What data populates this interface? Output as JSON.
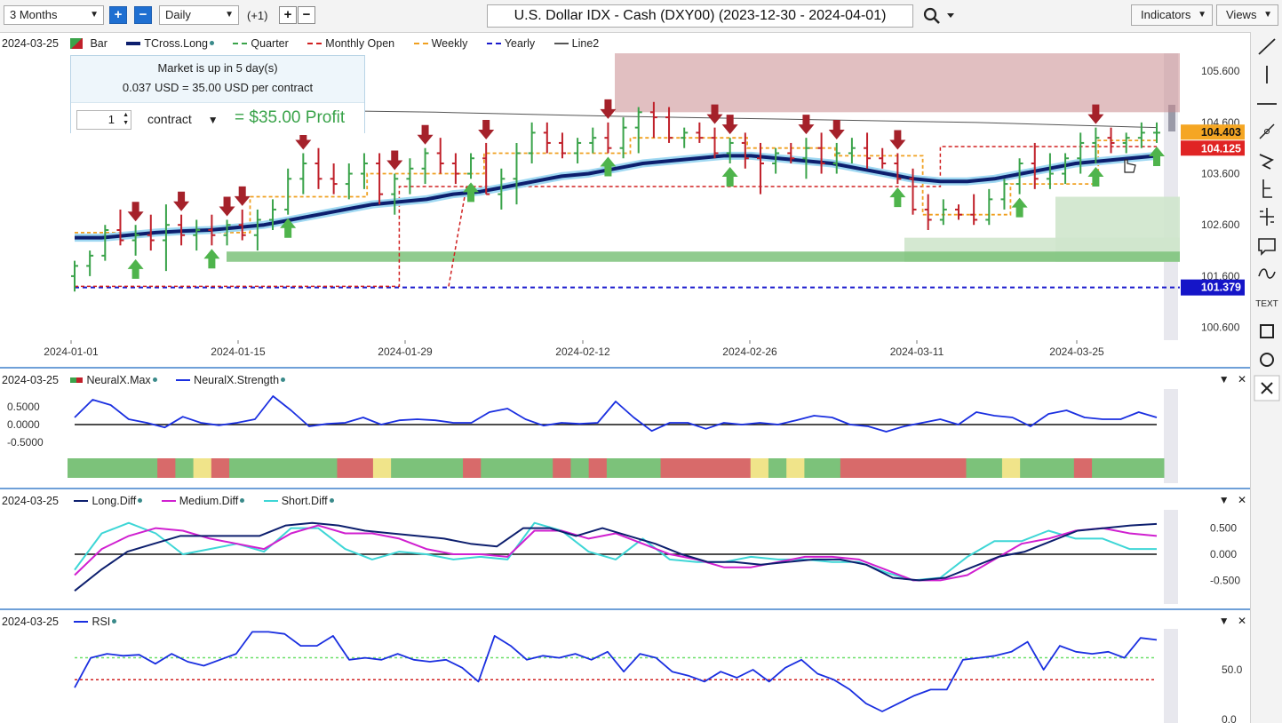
{
  "toolbar": {
    "range_select": "3 Months",
    "interval_select": "Daily",
    "offset_label": "(+1)",
    "zoom_in": "+",
    "zoom_out": "−",
    "add": "+",
    "remove": "−",
    "chart_title": "U.S. Dollar IDX - Cash (DXY00) (2023-12-30 - 2024-04-01)",
    "indicators_label": "Indicators",
    "views_label": "Views"
  },
  "sidebar_tools": [
    "draw-line-icon",
    "vertical-line-icon",
    "horizontal-line-icon",
    "pencil-icon",
    "trend-arrow-icon",
    "fib-icon",
    "crosshair-icon",
    "comment-icon",
    "wave-icon",
    "text-icon",
    "rectangle-icon",
    "circle-icon",
    "close-icon"
  ],
  "sidebar_text_label": "TEXT",
  "colors": {
    "up_bar": "#3aa34a",
    "down_bar": "#c0202a",
    "tcross": "#0d1f6e",
    "tcross_glow": "#9fd8f2",
    "quarter": "#3aa34a",
    "monthly_open": "#d02020",
    "weekly": "#f0a020",
    "yearly": "#1a1acc",
    "line2": "#555555",
    "strength": "#1a2fe0",
    "long_diff": "#0d1f6e",
    "medium_diff": "#d020d0",
    "short_diff": "#3ed6d6",
    "rsi": "#1a2fe0"
  },
  "info_box": {
    "line1": "Market is up in 5 day(s)",
    "line2": "0.037 USD = 35.00 USD per contract",
    "quantity": "1",
    "contract_label": "contract",
    "profit": "= $35.00 Profit"
  },
  "price_panel": {
    "date": "2024-03-25",
    "legend": [
      "Bar",
      "TCross.Long",
      "Quarter",
      "Monthly Open",
      "Weekly",
      "Yearly",
      "Line2"
    ],
    "price_label_current": "104.403",
    "price_label_monthly_open": "104.125",
    "price_label_yearly": "101.379"
  },
  "neuralx_panel": {
    "date": "2024-03-25",
    "legend": [
      "NeuralX.Max",
      "NeuralX.Strength"
    ]
  },
  "diff_panel": {
    "date": "2024-03-25",
    "legend": [
      "Long.Diff",
      "Medium.Diff",
      "Short.Diff"
    ]
  },
  "rsi_panel": {
    "date": "2024-03-25",
    "legend": [
      "RSI"
    ]
  },
  "panel_controls": {
    "collapse": "▼",
    "close": "✕"
  },
  "chart_data": [
    {
      "type": "bar",
      "panel": "price",
      "x_ticks": [
        "2024-01-01",
        "2024-01-15",
        "2024-01-29",
        "2024-02-12",
        "2024-02-26",
        "2024-03-11",
        "2024-03-25"
      ],
      "y_ticks": [
        105.6,
        104.6,
        103.6,
        102.6,
        101.6,
        100.6
      ],
      "ylim": [
        100.35,
        105.95
      ],
      "ohlc": [
        [
          101.6,
          101.9,
          101.3,
          101.8
        ],
        [
          101.8,
          102.1,
          101.6,
          102.0
        ],
        [
          102.0,
          102.6,
          101.9,
          102.5
        ],
        [
          102.5,
          102.9,
          102.2,
          102.3
        ],
        [
          102.3,
          102.6,
          102.0,
          102.4
        ],
        [
          102.4,
          102.8,
          102.1,
          102.3
        ],
        [
          102.3,
          103.0,
          101.7,
          102.6
        ],
        [
          102.6,
          102.8,
          102.2,
          102.4
        ],
        [
          102.4,
          102.7,
          102.1,
          102.5
        ],
        [
          102.5,
          102.8,
          102.2,
          102.4
        ],
        [
          102.4,
          102.7,
          102.2,
          102.6
        ],
        [
          102.6,
          102.9,
          102.3,
          102.4
        ],
        [
          102.4,
          102.9,
          102.1,
          102.7
        ],
        [
          102.7,
          103.1,
          102.5,
          102.9
        ],
        [
          102.9,
          103.7,
          102.8,
          103.5
        ],
        [
          103.5,
          104.0,
          103.2,
          103.8
        ],
        [
          103.8,
          104.1,
          103.3,
          103.5
        ],
        [
          103.5,
          103.8,
          103.2,
          103.4
        ],
        [
          103.4,
          103.8,
          103.1,
          103.6
        ],
        [
          103.6,
          104.0,
          103.3,
          103.8
        ],
        [
          103.8,
          104.0,
          103.0,
          103.2
        ],
        [
          103.2,
          103.6,
          102.8,
          103.5
        ],
        [
          103.5,
          103.9,
          103.2,
          103.7
        ],
        [
          103.7,
          104.1,
          103.4,
          104.0
        ],
        [
          104.0,
          104.3,
          103.6,
          103.8
        ],
        [
          103.8,
          104.0,
          103.4,
          103.6
        ],
        [
          103.6,
          104.0,
          103.5,
          103.9
        ],
        [
          103.9,
          104.2,
          103.2,
          103.2
        ],
        [
          103.2,
          103.7,
          102.9,
          103.5
        ],
        [
          103.5,
          104.2,
          103.0,
          104.0
        ],
        [
          104.0,
          104.6,
          103.8,
          104.4
        ],
        [
          104.4,
          104.6,
          104.0,
          104.2
        ],
        [
          104.2,
          104.4,
          103.9,
          104.0
        ],
        [
          104.0,
          104.3,
          103.8,
          104.2
        ],
        [
          104.2,
          104.5,
          104.0,
          104.3
        ],
        [
          104.3,
          104.6,
          104.0,
          104.1
        ],
        [
          104.1,
          104.7,
          103.9,
          104.5
        ],
        [
          104.5,
          104.9,
          104.0,
          104.8
        ],
        [
          104.8,
          105.0,
          104.3,
          104.7
        ],
        [
          104.7,
          104.9,
          104.2,
          104.3
        ],
        [
          104.3,
          104.5,
          104.1,
          104.4
        ],
        [
          104.4,
          104.6,
          104.2,
          104.3
        ],
        [
          104.3,
          104.5,
          103.9,
          104.0
        ],
        [
          104.0,
          104.3,
          103.8,
          104.2
        ],
        [
          104.2,
          104.4,
          103.7,
          103.9
        ],
        [
          103.9,
          104.2,
          103.2,
          103.8
        ],
        [
          103.8,
          104.1,
          103.6,
          104.0
        ],
        [
          104.0,
          104.2,
          103.8,
          103.9
        ],
        [
          103.9,
          104.3,
          103.5,
          104.1
        ],
        [
          104.1,
          104.4,
          103.6,
          103.8
        ],
        [
          103.8,
          104.2,
          103.6,
          104.0
        ],
        [
          104.0,
          104.3,
          103.8,
          104.1
        ],
        [
          104.1,
          104.4,
          103.7,
          103.9
        ],
        [
          103.9,
          104.1,
          103.7,
          103.8
        ],
        [
          103.8,
          104.0,
          103.4,
          103.5
        ],
        [
          103.5,
          103.7,
          102.8,
          102.9
        ],
        [
          102.9,
          103.2,
          102.5,
          102.7
        ],
        [
          102.7,
          103.1,
          102.6,
          102.9
        ],
        [
          102.9,
          103.0,
          102.7,
          102.8
        ],
        [
          102.8,
          103.2,
          102.6,
          102.7
        ],
        [
          102.7,
          103.3,
          102.6,
          103.1
        ],
        [
          103.1,
          103.5,
          102.9,
          103.4
        ],
        [
          103.4,
          103.9,
          103.2,
          103.8
        ],
        [
          103.8,
          104.2,
          103.3,
          103.5
        ],
        [
          103.5,
          104.0,
          103.3,
          103.6
        ],
        [
          103.6,
          104.0,
          103.4,
          103.9
        ],
        [
          103.9,
          104.4,
          103.6,
          104.2
        ],
        [
          104.2,
          104.5,
          103.8,
          104.3
        ],
        [
          104.3,
          104.5,
          104.0,
          104.2
        ],
        [
          104.2,
          104.4,
          104.0,
          104.3
        ],
        [
          104.3,
          104.6,
          104.1,
          104.4
        ],
        [
          104.4,
          104.6,
          104.2,
          104.4
        ]
      ],
      "tcross_long": [
        102.35,
        102.35,
        102.4,
        102.45,
        102.48,
        102.5,
        102.55,
        102.6,
        102.7,
        102.8,
        102.9,
        103.0,
        103.05,
        103.1,
        103.2,
        103.25,
        103.35,
        103.45,
        103.55,
        103.6,
        103.7,
        103.8,
        103.85,
        103.9,
        103.95,
        103.95,
        103.9,
        103.85,
        103.8,
        103.7,
        103.6,
        103.5,
        103.45,
        103.45,
        103.5,
        103.6,
        103.7,
        103.8,
        103.85,
        103.9,
        103.95
      ],
      "weekly": [
        102.45,
        102.45,
        102.45,
        102.45,
        102.45,
        102.45,
        103.15,
        103.15,
        103.15,
        103.15,
        103.6,
        103.6,
        103.6,
        103.6,
        104.0,
        104.0,
        104.0,
        104.0,
        104.0,
        104.3,
        104.3,
        104.3,
        104.3,
        104.1,
        104.1,
        104.1,
        103.95,
        103.95,
        103.95,
        102.8,
        102.8,
        102.8,
        103.4,
        103.4,
        103.4,
        104.25,
        104.25
      ],
      "monthly_open": [
        101.4,
        101.4,
        101.4,
        103.35,
        103.35,
        103.35,
        103.35,
        103.35,
        104.13,
        104.13
      ],
      "yearly": 101.379,
      "line2": [
        104.85,
        104.85,
        104.8,
        104.72,
        104.66,
        104.6,
        104.5
      ],
      "buy_arrows": [
        6,
        13,
        20,
        37,
        49,
        60,
        76,
        88,
        95,
        101
      ],
      "sell_arrows": [
        5,
        10,
        14,
        16,
        21,
        29,
        33,
        38,
        49,
        59,
        61,
        68,
        71,
        76,
        94
      ],
      "zones": [
        {
          "name": "resistance-zone",
          "from": 104.8,
          "to": 105.95
        },
        {
          "name": "support-zone-1",
          "from": 101.88,
          "to": 102.08
        },
        {
          "name": "support-zone-2",
          "from": 101.88,
          "to": 103.15
        }
      ]
    },
    {
      "type": "line",
      "panel": "neuralx",
      "y_ticks": [
        0.5,
        0.0,
        -0.5
      ],
      "ylim": [
        -0.9,
        0.9
      ],
      "strength": [
        0.2,
        0.7,
        0.55,
        0.15,
        0.05,
        -0.08,
        0.22,
        0.05,
        -0.02,
        0.05,
        0.15,
        0.8,
        0.4,
        -0.05,
        0.02,
        0.05,
        0.2,
        0.0,
        0.12,
        0.15,
        0.12,
        0.05,
        0.05,
        0.35,
        0.45,
        0.15,
        -0.03,
        0.05,
        0.02,
        0.05,
        0.65,
        0.2,
        -0.18,
        0.05,
        0.05,
        -0.12,
        0.05,
        0.0,
        0.05,
        0.0,
        0.12,
        0.25,
        0.2,
        0.0,
        -0.05,
        -0.2,
        -0.05,
        0.05,
        0.15,
        0.0,
        0.35,
        0.25,
        0.2,
        -0.05,
        0.3,
        0.4,
        0.2,
        0.15,
        0.15,
        0.35,
        0.2
      ],
      "max_states": [
        "g",
        "g",
        "g",
        "g",
        "g",
        "r",
        "g",
        "y",
        "r",
        "g",
        "g",
        "g",
        "g",
        "g",
        "g",
        "r",
        "r",
        "y",
        "g",
        "g",
        "g",
        "g",
        "r",
        "g",
        "g",
        "g",
        "g",
        "r",
        "g",
        "r",
        "g",
        "g",
        "g",
        "r",
        "r",
        "r",
        "r",
        "r",
        "y",
        "g",
        "y",
        "g",
        "g",
        "r",
        "r",
        "r",
        "r",
        "r",
        "r",
        "r",
        "g",
        "g",
        "y",
        "g",
        "g",
        "g",
        "r",
        "g",
        "g",
        "g",
        "g"
      ]
    },
    {
      "type": "line",
      "panel": "diff",
      "y_ticks": [
        0.5,
        0.0,
        -0.5
      ],
      "ylim": [
        -0.85,
        0.85
      ],
      "long_diff": [
        -0.7,
        -0.3,
        0.05,
        0.2,
        0.35,
        0.35,
        0.35,
        0.35,
        0.55,
        0.6,
        0.55,
        0.45,
        0.4,
        0.35,
        0.3,
        0.2,
        0.15,
        0.5,
        0.5,
        0.35,
        0.5,
        0.35,
        0.2,
        0.0,
        -0.15,
        -0.15,
        -0.2,
        -0.15,
        -0.1,
        -0.1,
        -0.2,
        -0.45,
        -0.5,
        -0.45,
        -0.25,
        -0.05,
        0.05,
        0.25,
        0.45,
        0.5,
        0.55,
        0.58
      ],
      "medium_diff": [
        -0.4,
        0.1,
        0.35,
        0.5,
        0.45,
        0.3,
        0.2,
        0.1,
        0.4,
        0.55,
        0.4,
        0.4,
        0.3,
        0.1,
        0.0,
        0.0,
        -0.05,
        0.45,
        0.45,
        0.3,
        0.4,
        0.2,
        0.0,
        -0.1,
        -0.25,
        -0.25,
        -0.15,
        -0.05,
        -0.05,
        -0.1,
        -0.3,
        -0.5,
        -0.5,
        -0.4,
        -0.1,
        0.2,
        0.3,
        0.45,
        0.5,
        0.4,
        0.35
      ],
      "short_diff": [
        -0.3,
        0.4,
        0.6,
        0.4,
        0.0,
        0.1,
        0.2,
        0.05,
        0.5,
        0.5,
        0.1,
        -0.1,
        0.05,
        0.0,
        -0.1,
        -0.05,
        -0.1,
        0.6,
        0.45,
        0.05,
        -0.1,
        0.3,
        -0.1,
        -0.15,
        -0.15,
        -0.05,
        -0.1,
        -0.1,
        -0.15,
        -0.15,
        -0.35,
        -0.5,
        -0.45,
        -0.05,
        0.25,
        0.25,
        0.45,
        0.3,
        0.3,
        0.1,
        0.1
      ]
    },
    {
      "type": "line",
      "panel": "rsi",
      "y_ticks": [
        50.0,
        0.0
      ],
      "ylim": [
        0,
        100
      ],
      "overbought": 62,
      "oversold": 40,
      "rsi": [
        32,
        62,
        66,
        64,
        65,
        56,
        66,
        58,
        54,
        60,
        66,
        88,
        88,
        86,
        74,
        74,
        84,
        60,
        62,
        60,
        66,
        60,
        58,
        60,
        52,
        38,
        84,
        74,
        60,
        64,
        62,
        66,
        60,
        68,
        48,
        66,
        62,
        48,
        44,
        38,
        48,
        42,
        50,
        38,
        52,
        60,
        46,
        40,
        30,
        16,
        8,
        16,
        24,
        30,
        30,
        60,
        62,
        64,
        68,
        78,
        50,
        74,
        68,
        66,
        68,
        62,
        82,
        80
      ]
    }
  ]
}
